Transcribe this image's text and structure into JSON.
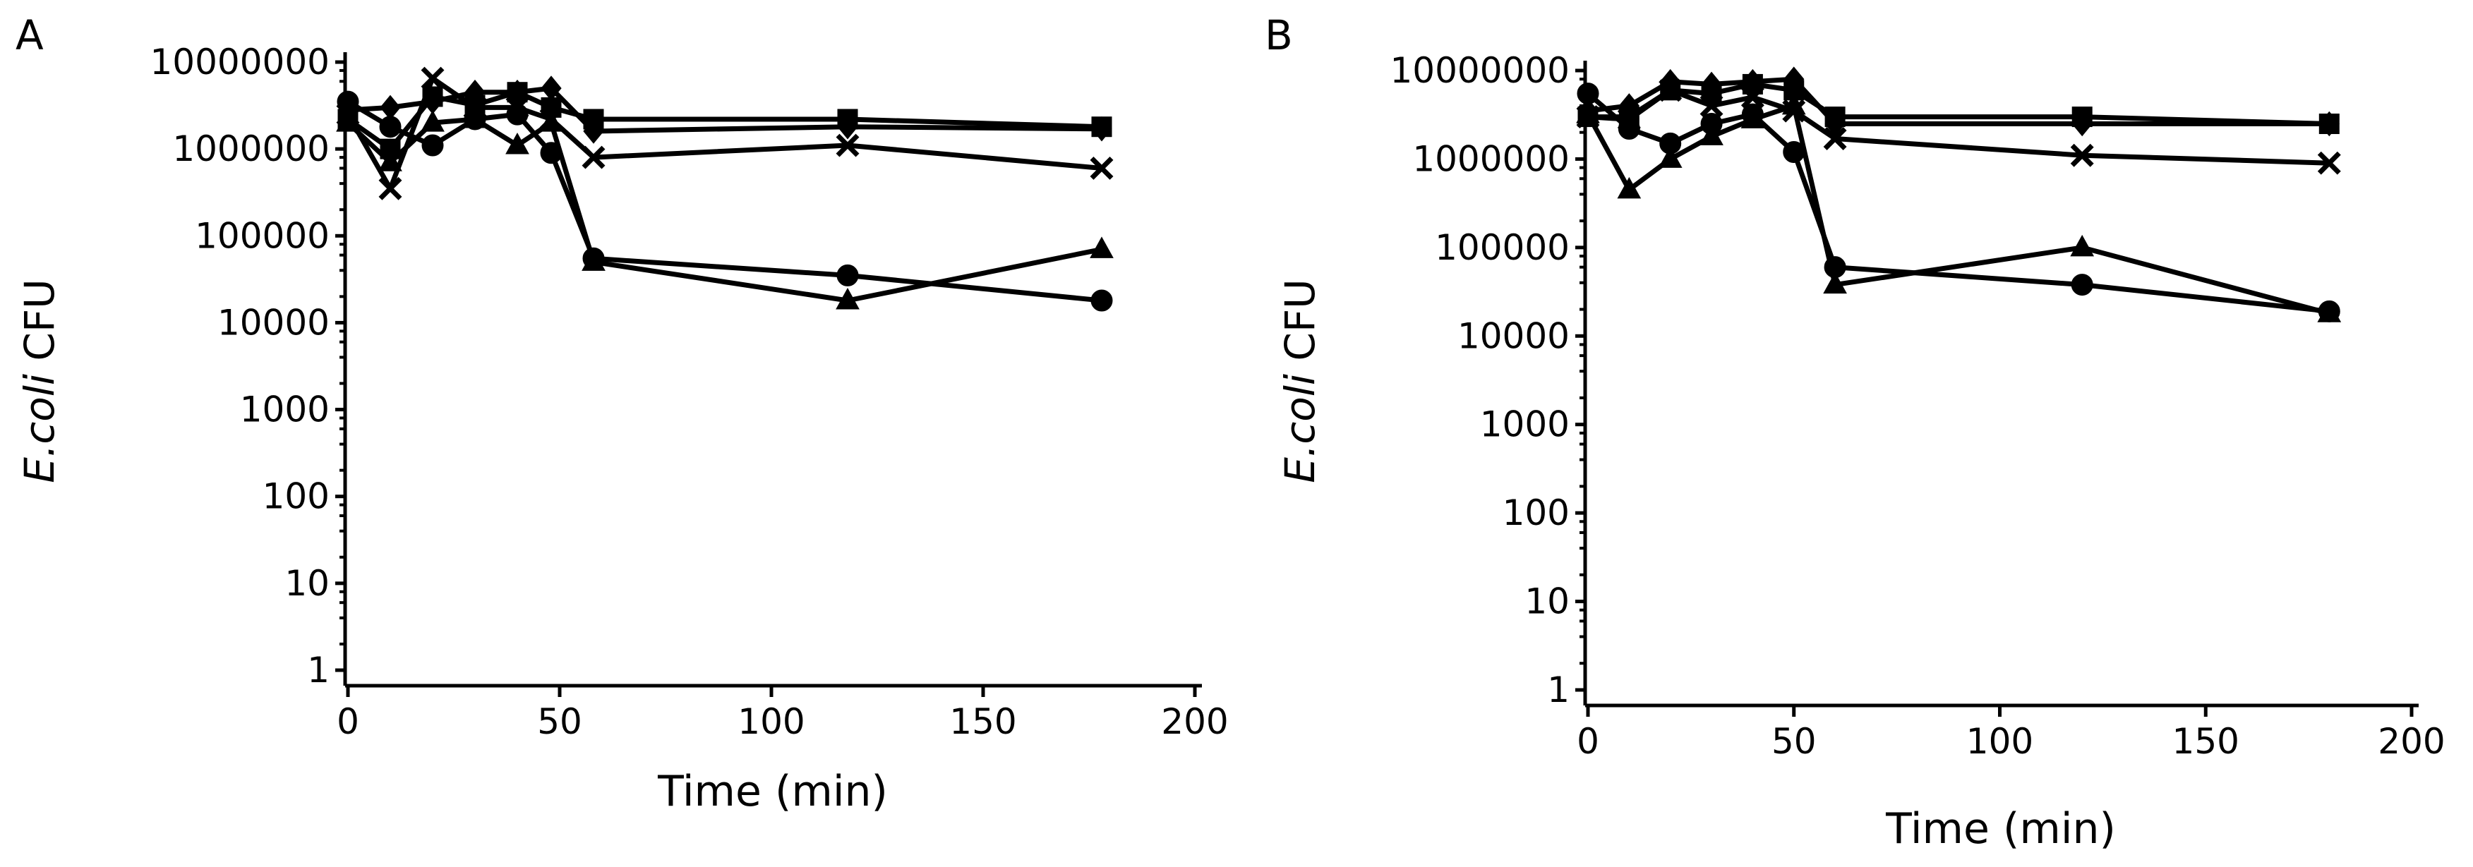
{
  "chart_data": [
    {
      "type": "line",
      "panel_label": "A",
      "title": "",
      "xlabel": "Time (min)",
      "ylabel_italic": "E.coli",
      "ylabel_rest": " CFU",
      "yscale": "log",
      "xlim": [
        0,
        200
      ],
      "ylim": [
        1,
        10000000
      ],
      "xticks": [
        "0",
        "50",
        "100",
        "150",
        "200"
      ],
      "yticks": [
        "1",
        "10",
        "100",
        "1000",
        "10000",
        "100000",
        "1000000",
        "10000000"
      ],
      "legend": "none",
      "series": [
        {
          "name": "circle",
          "marker": "circle",
          "x": [
            0,
            10,
            20,
            30,
            40,
            48,
            58,
            118,
            178
          ],
          "values": [
            3500000,
            1800000,
            1100000,
            2200000,
            2500000,
            900000,
            55000,
            35000,
            18000
          ]
        },
        {
          "name": "triangle",
          "marker": "triangle",
          "x": [
            0,
            10,
            20,
            30,
            40,
            48,
            58,
            118,
            178
          ],
          "values": [
            2000000,
            700000,
            2000000,
            2200000,
            1100000,
            2000000,
            50000,
            18000,
            70000
          ]
        },
        {
          "name": "x",
          "marker": "x",
          "x": [
            0,
            10,
            20,
            30,
            40,
            48,
            58,
            118,
            178
          ],
          "values": [
            2500000,
            350000,
            6500000,
            3000000,
            3000000,
            2200000,
            800000,
            1100000,
            600000
          ]
        },
        {
          "name": "diamond",
          "marker": "diamond",
          "x": [
            0,
            10,
            20,
            30,
            40,
            48,
            58,
            118,
            178
          ],
          "values": [
            2800000,
            3000000,
            3500000,
            4500000,
            4500000,
            5000000,
            1600000,
            1800000,
            1700000
          ]
        },
        {
          "name": "square",
          "marker": "square",
          "x": [
            0,
            10,
            20,
            30,
            40,
            48,
            58,
            118,
            178
          ],
          "values": [
            2200000,
            1000000,
            4000000,
            3200000,
            4500000,
            3000000,
            2200000,
            2200000,
            1800000
          ]
        }
      ]
    },
    {
      "type": "line",
      "panel_label": "B",
      "title": "",
      "xlabel": "Time  (min)",
      "ylabel_italic": "E.coli",
      "ylabel_rest": " CFU",
      "yscale": "log",
      "xlim": [
        0,
        200
      ],
      "ylim": [
        1,
        10000000
      ],
      "xticks": [
        "0",
        "50",
        "100",
        "150",
        "200"
      ],
      "yticks": [
        "1",
        "10",
        "100",
        "1000",
        "10000",
        "100000",
        "1000000",
        "10000000"
      ],
      "legend": "none",
      "series": [
        {
          "name": "circle",
          "marker": "circle",
          "x": [
            0,
            10,
            20,
            30,
            40,
            50,
            60,
            120,
            180
          ],
          "values": [
            5500000,
            2200000,
            1500000,
            2500000,
            3200000,
            1200000,
            60000,
            38000,
            19000
          ]
        },
        {
          "name": "triangle",
          "marker": "triangle",
          "x": [
            0,
            10,
            20,
            30,
            40,
            50,
            60,
            120,
            180
          ],
          "values": [
            3200000,
            450000,
            1000000,
            1800000,
            2800000,
            4000000,
            38000,
            100000,
            18000
          ]
        },
        {
          "name": "x",
          "marker": "x",
          "x": [
            0,
            10,
            20,
            30,
            40,
            50,
            60,
            120,
            180
          ],
          "values": [
            3000000,
            2800000,
            6000000,
            4000000,
            5000000,
            3500000,
            1700000,
            1100000,
            900000
          ]
        },
        {
          "name": "diamond",
          "marker": "diamond",
          "x": [
            0,
            10,
            20,
            30,
            40,
            50,
            60,
            120,
            180
          ],
          "values": [
            3500000,
            4000000,
            7500000,
            7000000,
            7500000,
            8000000,
            2500000,
            2500000,
            2500000
          ]
        },
        {
          "name": "square",
          "marker": "square",
          "x": [
            0,
            10,
            20,
            30,
            40,
            50,
            60,
            120,
            180
          ],
          "values": [
            3000000,
            3000000,
            6000000,
            5500000,
            7000000,
            6000000,
            3000000,
            3000000,
            2500000
          ]
        }
      ]
    }
  ]
}
